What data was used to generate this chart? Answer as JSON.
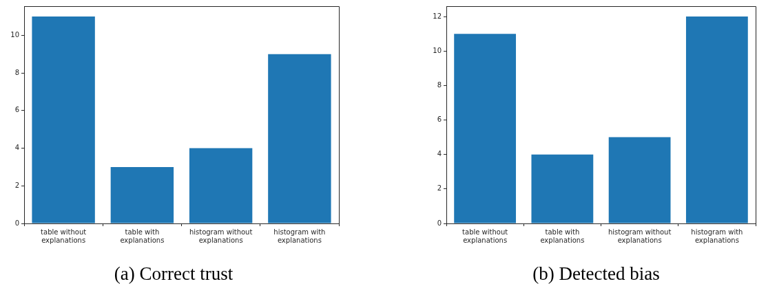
{
  "chart_data": [
    {
      "type": "bar",
      "title": "(a) Correct trust",
      "categories": [
        "table without explanations",
        "table with explanations",
        "histogram without explanations",
        "histogram with explanations"
      ],
      "values": [
        11,
        3,
        4,
        9
      ],
      "color": "#1f77b4",
      "ylim": [
        0,
        11.55
      ],
      "yticks": [
        0,
        2,
        4,
        6,
        8,
        10
      ]
    },
    {
      "type": "bar",
      "title": "(b) Detected bias",
      "categories": [
        "table without explanations",
        "table with explanations",
        "histogram without explanations",
        "histogram with explanations"
      ],
      "values": [
        11,
        4,
        5,
        12
      ],
      "color": "#1f77b4",
      "ylim": [
        0,
        12.6
      ],
      "yticks": [
        0,
        2,
        4,
        6,
        8,
        10,
        12
      ]
    }
  ]
}
